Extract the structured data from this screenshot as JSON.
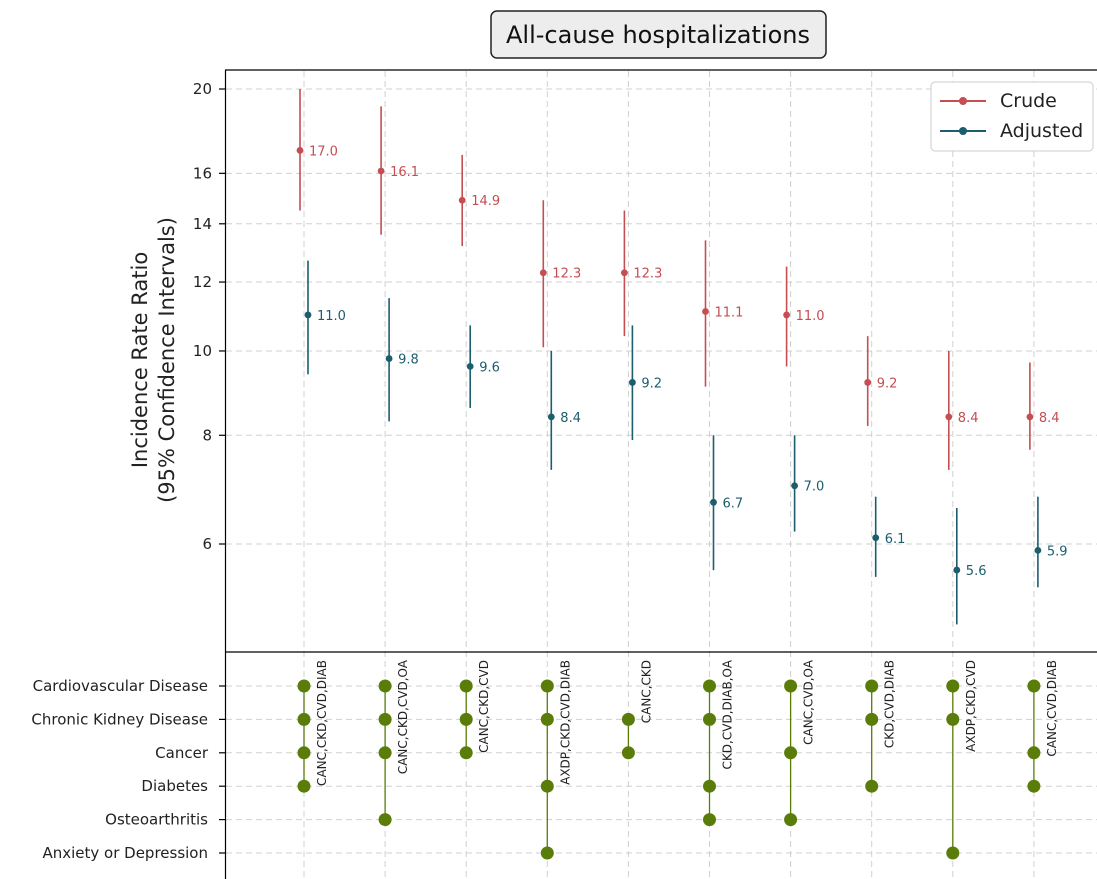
{
  "chart_data": {
    "type": "scatter",
    "title": "All-cause hospitalizations",
    "ylabel_lines": [
      "Incidence Rate Ratio",
      "(95% Confidence Intervals)"
    ],
    "yscale": "log",
    "ylim": [
      4.6,
      21.2
    ],
    "yticks": [
      6,
      8,
      10,
      12,
      14,
      16,
      20
    ],
    "grid": true,
    "legend_position": "top-right",
    "categories": [
      "CANC,CKD,CVD,DIAB",
      "CANC,CKD,CVD,OA",
      "CANC,CKD,CVD",
      "AXDP,CKD,CVD,DIAB",
      "CANC,CKD",
      "CKD,CVD,DIAB,OA",
      "CANC,CVD,OA",
      "CKD,CVD,DIAB",
      "AXDP,CKD,CVD",
      "CANC,CVD,DIAB"
    ],
    "series": [
      {
        "name": "Crude",
        "color": "#c44e52",
        "values": [
          17.0,
          16.1,
          14.9,
          12.3,
          12.3,
          11.1,
          11.0,
          9.2,
          8.4,
          8.4
        ],
        "value_labels": [
          "17.0",
          "16.1",
          "14.9",
          "12.3",
          "12.3",
          "11.1",
          "11.0",
          "9.2",
          "8.4",
          "8.4"
        ],
        "ci_low": [
          14.5,
          13.6,
          13.2,
          10.1,
          10.4,
          9.1,
          9.6,
          8.2,
          7.3,
          7.7
        ],
        "ci_high": [
          20.0,
          19.1,
          16.8,
          14.9,
          14.5,
          13.4,
          12.5,
          10.4,
          10.0,
          9.7
        ]
      },
      {
        "name": "Adjusted",
        "color": "#1b5e6e",
        "values": [
          11.0,
          9.8,
          9.6,
          8.4,
          9.2,
          6.7,
          7.0,
          6.1,
          5.6,
          5.9
        ],
        "value_labels": [
          "11.0",
          "9.8",
          "9.6",
          "8.4",
          "9.2",
          "6.7",
          "7.0",
          "6.1",
          "5.6",
          "5.9"
        ],
        "ci_low": [
          9.4,
          8.3,
          8.6,
          7.3,
          7.9,
          5.6,
          6.2,
          5.5,
          4.85,
          5.35
        ],
        "ci_high": [
          12.7,
          11.5,
          10.7,
          10.0,
          10.7,
          8.0,
          8.0,
          6.8,
          6.6,
          6.8
        ]
      }
    ],
    "conditions": [
      "Cardiovascular Disease",
      "Chronic Kidney Disease",
      "Cancer",
      "Diabetes",
      "Osteoarthritis",
      "Anxiety or Depression"
    ],
    "membership": [
      [
        0,
        1,
        2,
        3
      ],
      [
        0,
        1,
        2,
        4
      ],
      [
        0,
        1,
        2
      ],
      [
        0,
        1,
        3,
        5
      ],
      [
        1,
        2
      ],
      [
        0,
        1,
        3,
        4
      ],
      [
        0,
        2,
        4
      ],
      [
        0,
        1,
        3
      ],
      [
        0,
        1,
        5
      ],
      [
        0,
        2,
        3
      ]
    ],
    "membership_color": "#5a7d0a"
  }
}
